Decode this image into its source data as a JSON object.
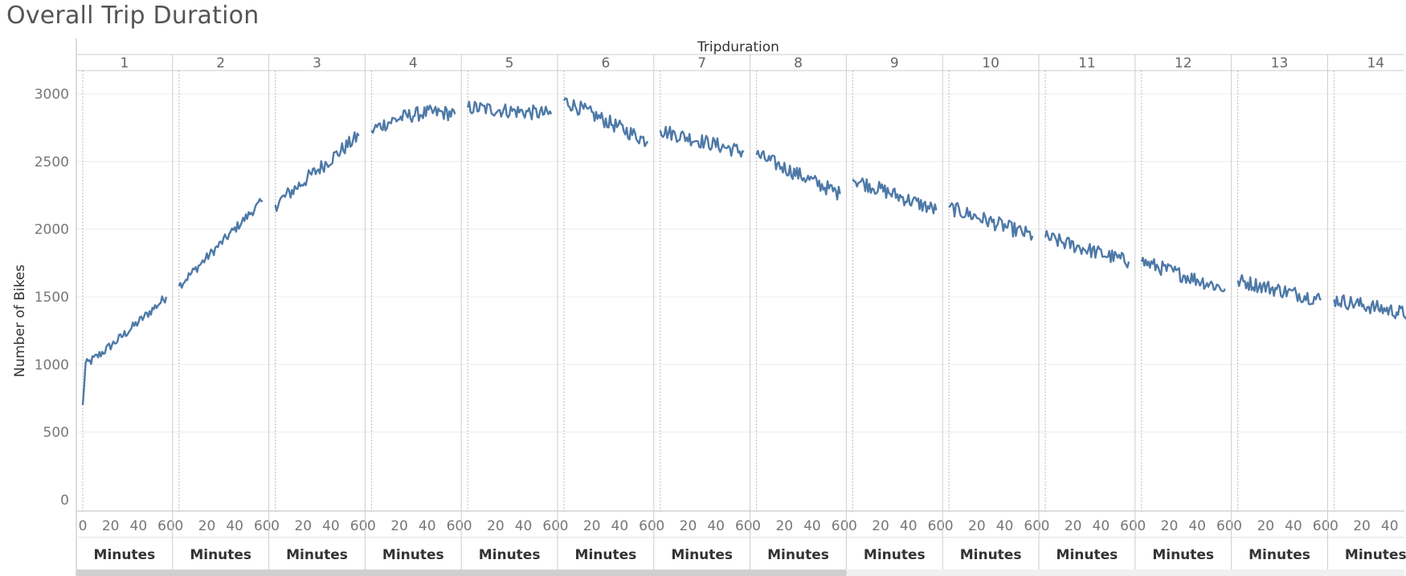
{
  "page": {
    "title": "Overall Trip Duration"
  },
  "scrollbar": {
    "position_fraction": 0.58
  },
  "chart_data": {
    "type": "line",
    "title": "Overall Trip Duration",
    "column_header": "Tripduration",
    "xlabel": "Minutes",
    "ylabel": "Number of Bikes",
    "ylim": [
      0,
      3200
    ],
    "yticks": [
      0,
      500,
      1000,
      1500,
      2000,
      2500,
      3000
    ],
    "xlim": [
      0,
      60
    ],
    "xticks": [
      0,
      20,
      40,
      60
    ],
    "xtick_labels_last_panel": [
      "0",
      "20",
      "40"
    ],
    "line_color": "#4e79a7",
    "panels": [
      {
        "label": "1",
        "start": 700,
        "end": 1500,
        "peak": null
      },
      {
        "label": "2",
        "start": 1580,
        "end": 2210,
        "peak": null
      },
      {
        "label": "3",
        "start": 2180,
        "end": 2690,
        "peak": null
      },
      {
        "label": "4",
        "start": 2730,
        "end": 2850,
        "peak": 2900
      },
      {
        "label": "5",
        "start": 2900,
        "end": 2850,
        "peak": null
      },
      {
        "label": "6",
        "start": 2950,
        "end": 2650,
        "peak": null
      },
      {
        "label": "7",
        "start": 2730,
        "end": 2570,
        "peak": null
      },
      {
        "label": "8",
        "start": 2550,
        "end": 2260,
        "peak": null
      },
      {
        "label": "9",
        "start": 2370,
        "end": 2140,
        "peak": null
      },
      {
        "label": "10",
        "start": 2160,
        "end": 1950,
        "peak": null
      },
      {
        "label": "11",
        "start": 1940,
        "end": 1760,
        "peak": null
      },
      {
        "label": "12",
        "start": 1760,
        "end": 1560,
        "peak": null
      },
      {
        "label": "13",
        "start": 1620,
        "end": 1480,
        "peak": null
      },
      {
        "label": "14",
        "start": 1480,
        "end": 1360,
        "peak": null
      }
    ]
  }
}
